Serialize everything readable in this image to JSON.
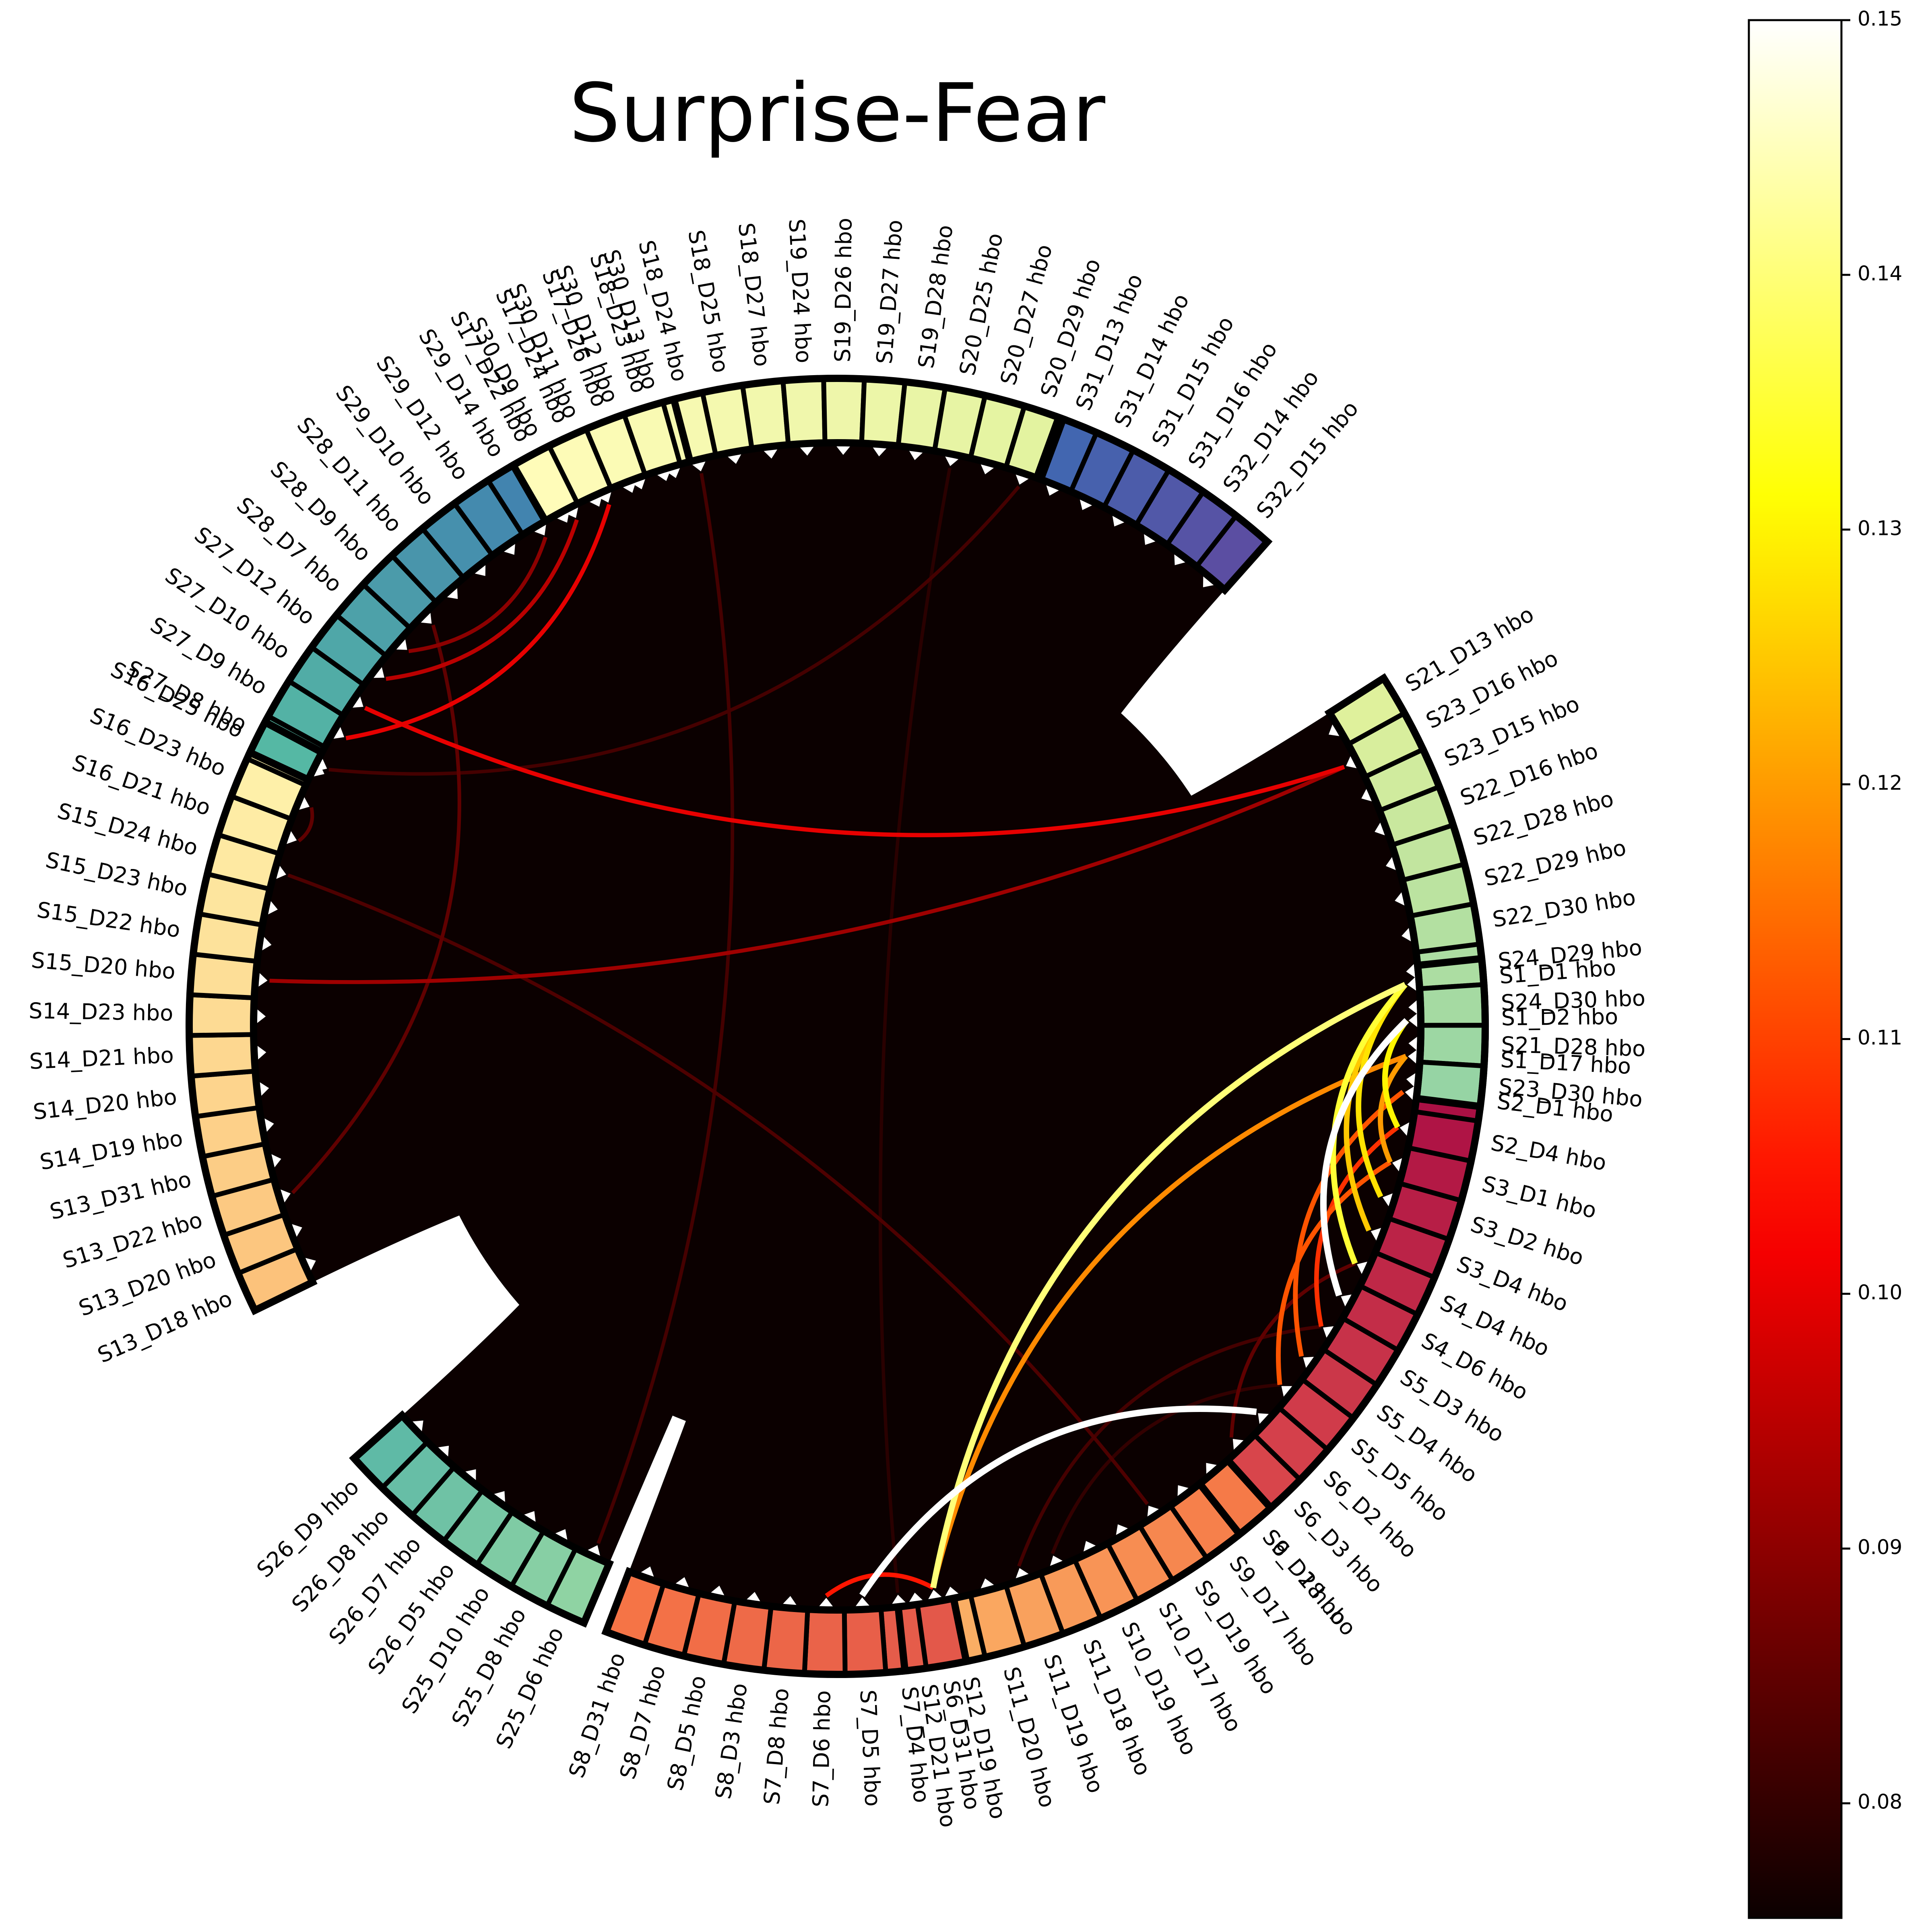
{
  "chart_data": {
    "type": "chord",
    "title": "Surprise-Fear",
    "colormap": "hot",
    "colorbar": {
      "min": 0.0755,
      "max": 0.15,
      "ticks": [
        0.08,
        0.09,
        0.1,
        0.11,
        0.12,
        0.13,
        0.14,
        0.15
      ],
      "tick_labels": [
        "0.08",
        "0.09",
        "0.10",
        "0.11",
        "0.12",
        "0.13",
        "0.14",
        "0.15"
      ]
    },
    "groups": [
      {
        "color": "#9e0142",
        "nodes": [
          "S1_D1 hbo",
          "S1_D2 hbo",
          "S1_D17 hbo",
          "S2_D1 hbo",
          "S2_D4 hbo",
          "S3_D1 hbo",
          "S3_D2 hbo",
          "S3_D4 hbo",
          "S4_D4 hbo",
          "S4_D6 hbo",
          "S5_D3 hbo",
          "S5_D4 hbo",
          "S5_D5 hbo",
          "S6_D2 hbo",
          "S6_D3 hbo",
          "S6_D18 hbo"
        ],
        "color_end": "#dc4a4c"
      },
      {
        "color": "#f57a48",
        "nodes": [
          "S9_D2 hbo",
          "S9_D17 hbo",
          "S9_D19 hbo",
          "S10_D17 hbo",
          "S10_D19 hbo",
          "S11_D18 hbo",
          "S11_D19 hbo",
          "S11_D20 hbo",
          "S12_D19 hbo",
          "S12_D21 hbo"
        ],
        "color_end": "#fbb467"
      },
      {
        "color": "#e3584a",
        "nodes": [
          "S6_D31 hbo",
          "S7_D4 hbo",
          "S7_D5 hbo",
          "S7_D6 hbo",
          "S7_D8 hbo",
          "S8_D3 hbo",
          "S8_D5 hbo",
          "S8_D7 hbo",
          "S8_D31 hbo"
        ],
        "color_end": "#f57446"
      },
      {
        "color": "#8fd3a3",
        "nodes": [
          "S25_D6 hbo",
          "S25_D8 hbo",
          "S25_D10 hbo",
          "S26_D5 hbo",
          "S26_D7 hbo",
          "S26_D8 hbo",
          "S26_D9 hbo"
        ],
        "color_end": "#5fbaa6"
      },
      {
        "color": "#fcc27b",
        "nodes": [
          "S13_D18 hbo",
          "S13_D20 hbo",
          "S13_D22 hbo",
          "S13_D31 hbo",
          "S14_D19 hbo",
          "S14_D20 hbo",
          "S14_D21 hbo",
          "S14_D23 hbo",
          "S15_D20 hbo",
          "S15_D22 hbo",
          "S15_D23 hbo",
          "S15_D24 hbo",
          "S16_D21 hbo",
          "S16_D23 hbo",
          "S16_D25 hbo"
        ],
        "color_end": "#fef3ac"
      },
      {
        "color": "#55b8a4",
        "nodes": [
          "S27_D8 hbo",
          "S27_D9 hbo",
          "S27_D10 hbo",
          "S27_D12 hbo",
          "S28_D7 hbo",
          "S28_D9 hbo",
          "S28_D11 hbo",
          "S29_D10 hbo",
          "S29_D12 hbo",
          "S29_D14 hbo",
          "S30_D9 hbo",
          "S30_D11 hbo",
          "S30_D12 hbo",
          "S30_D13 hbo"
        ],
        "color_end": "#3a6db4"
      },
      {
        "color": "#fffcb9",
        "nodes": [
          "S17_D22 hbo",
          "S17_D24 hbo",
          "S17_D26 hbo",
          "S18_D23 hbo",
          "S18_D24 hbo",
          "S18_D25 hbo",
          "S18_D27 hbo",
          "S19_D24 hbo",
          "S19_D26 hbo",
          "S19_D27 hbo",
          "S19_D28 hbo",
          "S20_D25 hbo",
          "S20_D27 hbo",
          "S20_D29 hbo"
        ],
        "color_end": "#e3f3a0"
      },
      {
        "color": "#4266b0",
        "nodes": [
          "S31_D13 hbo",
          "S31_D14 hbo",
          "S31_D15 hbo",
          "S31_D16 hbo",
          "S32_D14 hbo",
          "S32_D15 hbo"
        ],
        "color_end": "#5b4ea2"
      },
      {
        "color": "#dff19c",
        "nodes": [
          "S21_D13 hbo",
          "S23_D16 hbo",
          "S23_D15 hbo",
          "S22_D16 hbo",
          "S22_D28 hbo",
          "S22_D29 hbo",
          "S22_D30 hbo",
          "S24_D29 hbo",
          "S24_D30 hbo",
          "S21_D28 hbo",
          "S23_D30 hbo"
        ],
        "color_end": "#96d4a4"
      }
    ],
    "connections": [
      {
        "source": "S1_D1 hbo",
        "target": "S3_D4 hbo",
        "value": 0.125
      },
      {
        "source": "S1_D1 hbo",
        "target": "S4_D4 hbo",
        "value": 0.135
      },
      {
        "source": "S1_D1 hbo",
        "target": "S3_D2 hbo",
        "value": 0.128
      },
      {
        "source": "S1_D1 hbo",
        "target": "S6_D31 hbo",
        "value": 0.14
      },
      {
        "source": "S1_D2 hbo",
        "target": "S2_D4 hbo",
        "value": 0.13
      },
      {
        "source": "S1_D2 hbo",
        "target": "S4_D6 hbo",
        "value": 0.15
      },
      {
        "source": "S1_D17 hbo",
        "target": "S3_D1 hbo",
        "value": 0.12
      },
      {
        "source": "S1_D17 hbo",
        "target": "S6_D31 hbo",
        "value": 0.118
      },
      {
        "source": "S2_D1 hbo",
        "target": "S5_D4 hbo",
        "value": 0.112
      },
      {
        "source": "S2_D4 hbo",
        "target": "S5_D3 hbo",
        "value": 0.108
      },
      {
        "source": "S3_D1 hbo",
        "target": "S5_D5 hbo",
        "value": 0.112
      },
      {
        "source": "S6_D2 hbo",
        "target": "S7_D5 hbo",
        "value": 0.15
      },
      {
        "source": "S6_D31 hbo",
        "target": "S7_D6 hbo",
        "value": 0.105
      },
      {
        "source": "S4_D4 hbo",
        "target": "S6_D3 hbo",
        "value": 0.085
      },
      {
        "source": "S5_D3 hbo",
        "target": "S11_D19 hbo",
        "value": 0.082
      },
      {
        "source": "S27_D10 hbo",
        "target": "S23_D16 hbo",
        "value": 0.1
      },
      {
        "source": "S15_D20 hbo",
        "target": "S23_D16 hbo",
        "value": 0.092
      },
      {
        "source": "S27_D9 hbo",
        "target": "S30_D11 hbo",
        "value": 0.1
      },
      {
        "source": "S27_D12 hbo",
        "target": "S30_D9 hbo",
        "value": 0.095
      },
      {
        "source": "S28_D7 hbo",
        "target": "S29_D14 hbo",
        "value": 0.09
      },
      {
        "source": "S13_D22 hbo",
        "target": "S28_D9 hbo",
        "value": 0.085
      },
      {
        "source": "S16_D21 hbo",
        "target": "S16_D23 hbo",
        "value": 0.085
      },
      {
        "source": "S9_D19 hbo",
        "target": "S15_D24 hbo",
        "value": 0.083
      },
      {
        "source": "S25_D6 hbo",
        "target": "S18_D24 hbo",
        "value": 0.082
      },
      {
        "source": "S27_D8 hbo",
        "target": "S20_D29 hbo",
        "value": 0.082
      },
      {
        "source": "S7_D4 hbo",
        "target": "S20_D25 hbo",
        "value": 0.079
      },
      {
        "source": "S11_D18 hbo",
        "target": "S5_D5 hbo",
        "value": 0.08
      }
    ]
  }
}
